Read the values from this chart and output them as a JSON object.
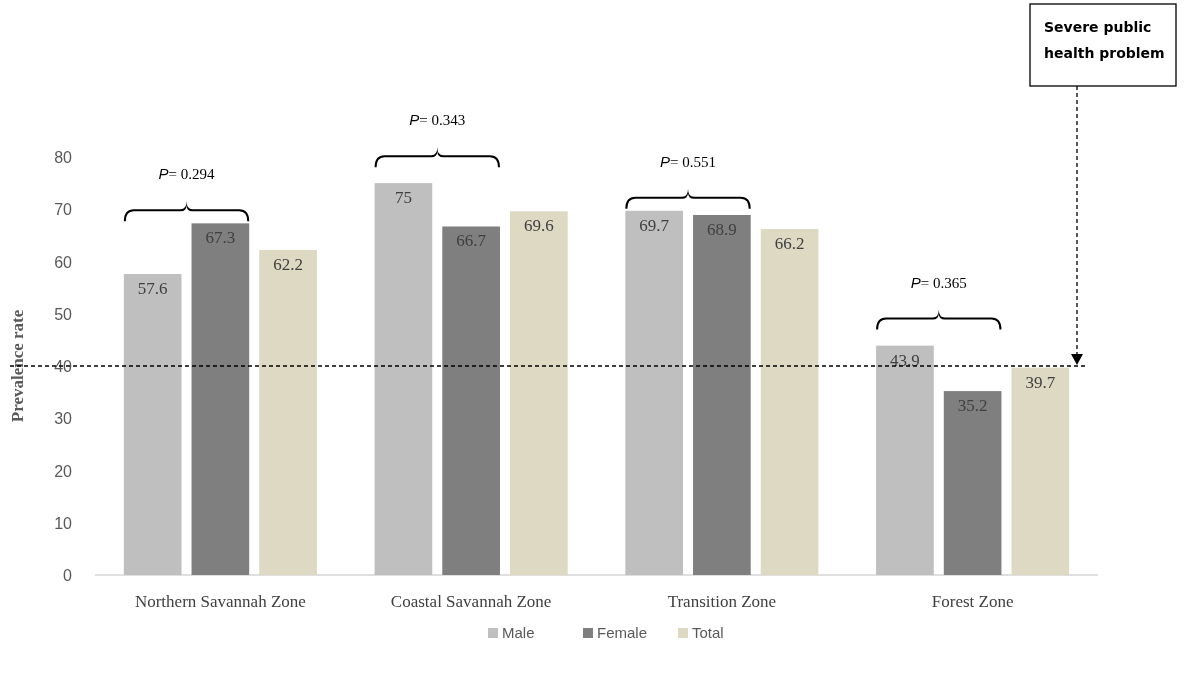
{
  "chart_data": {
    "type": "bar",
    "ylabel": "Prevalence rate",
    "categories": [
      "Northern Savannah Zone",
      "Coastal Savannah Zone",
      "Transition Zone",
      "Forest Zone"
    ],
    "series": [
      {
        "name": "Male",
        "color": "#bfbfbf",
        "values": [
          57.6,
          75,
          69.7,
          43.9
        ]
      },
      {
        "name": "Female",
        "color": "#7f7f7f",
        "values": [
          67.3,
          66.7,
          68.9,
          35.2
        ]
      },
      {
        "name": "Total",
        "color": "#ddd9c3",
        "values": [
          62.2,
          69.6,
          66.2,
          39.7
        ]
      }
    ],
    "ylim": [
      0,
      80
    ],
    "yticks": [
      0,
      10,
      20,
      30,
      40,
      50,
      60,
      70,
      80
    ],
    "grid": false,
    "legend": "bottom",
    "data_labels": true,
    "ref_lines": [
      {
        "axis": "y",
        "value": 40,
        "line_style": "dashed",
        "color": "#000000"
      }
    ],
    "annotations": [
      "P= 0.294",
      "P= 0.343",
      "P= 0.551",
      "P= 0.365",
      "Severe public health problem"
    ]
  }
}
